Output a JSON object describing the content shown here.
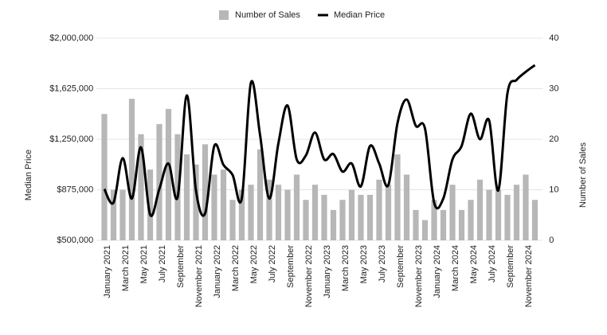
{
  "chart_data": {
    "type": "bar_line",
    "categories": [
      "January 2021",
      null,
      "March 2021",
      null,
      "May 2021",
      null,
      "July 2021",
      null,
      "September",
      null,
      "November 2021",
      null,
      "January 2022",
      null,
      "March 2022",
      null,
      "May 2022",
      null,
      "July 2022",
      null,
      "September",
      null,
      "November 2022",
      null,
      "January 2023",
      null,
      "March 2023",
      null,
      "May 2023",
      null,
      "July 2023",
      null,
      "September",
      null,
      "November 2023",
      null,
      "January 2024",
      null,
      "March 2024",
      null,
      "May 2024",
      null,
      "July 2024",
      null,
      "September",
      null,
      "November 2024",
      null
    ],
    "series": [
      {
        "name": "Number of Sales",
        "type": "bar",
        "axis": "y2",
        "color": "#b7b7b7",
        "values": [
          25,
          10,
          10,
          28,
          21,
          14,
          23,
          26,
          21,
          17,
          15,
          19,
          13,
          14,
          8,
          10,
          11,
          18,
          12,
          11,
          10,
          13,
          8,
          11,
          9,
          6,
          8,
          10,
          9,
          9,
          12,
          11,
          17,
          13,
          6,
          4,
          8,
          6,
          11,
          6,
          8,
          12,
          10,
          10,
          9,
          11,
          13,
          8
        ]
      },
      {
        "name": "Median Price",
        "type": "line",
        "axis": "y",
        "color": "#000000",
        "values": [
          880000,
          780000,
          1110000,
          810000,
          1190000,
          690000,
          880000,
          1070000,
          820000,
          1575000,
          870000,
          700000,
          1200000,
          1060000,
          985000,
          810000,
          1670000,
          1280000,
          810000,
          1220000,
          1500000,
          1100000,
          1130000,
          1300000,
          1100000,
          1140000,
          1010000,
          1070000,
          900000,
          1200000,
          1070000,
          910000,
          1370000,
          1545000,
          1350000,
          1330000,
          780000,
          810000,
          1100000,
          1200000,
          1440000,
          1250000,
          1390000,
          870000,
          1590000,
          1690000,
          1750000,
          1800000
        ]
      }
    ],
    "y_label": "Median Price",
    "y2_label": "Number of Sales",
    "ylim": [
      500000,
      2000000
    ],
    "yticks": [
      {
        "value": 500000,
        "label": "$500,000"
      },
      {
        "value": 875000,
        "label": "$875,000"
      },
      {
        "value": 1250000,
        "label": "$1,250,000"
      },
      {
        "value": 1625000,
        "label": "$1,625,000"
      },
      {
        "value": 2000000,
        "label": "$2,000,000"
      }
    ],
    "y2lim": [
      0,
      40
    ],
    "y2ticks": [
      0,
      10,
      20,
      30,
      40
    ],
    "grid": true,
    "legend": "top"
  }
}
